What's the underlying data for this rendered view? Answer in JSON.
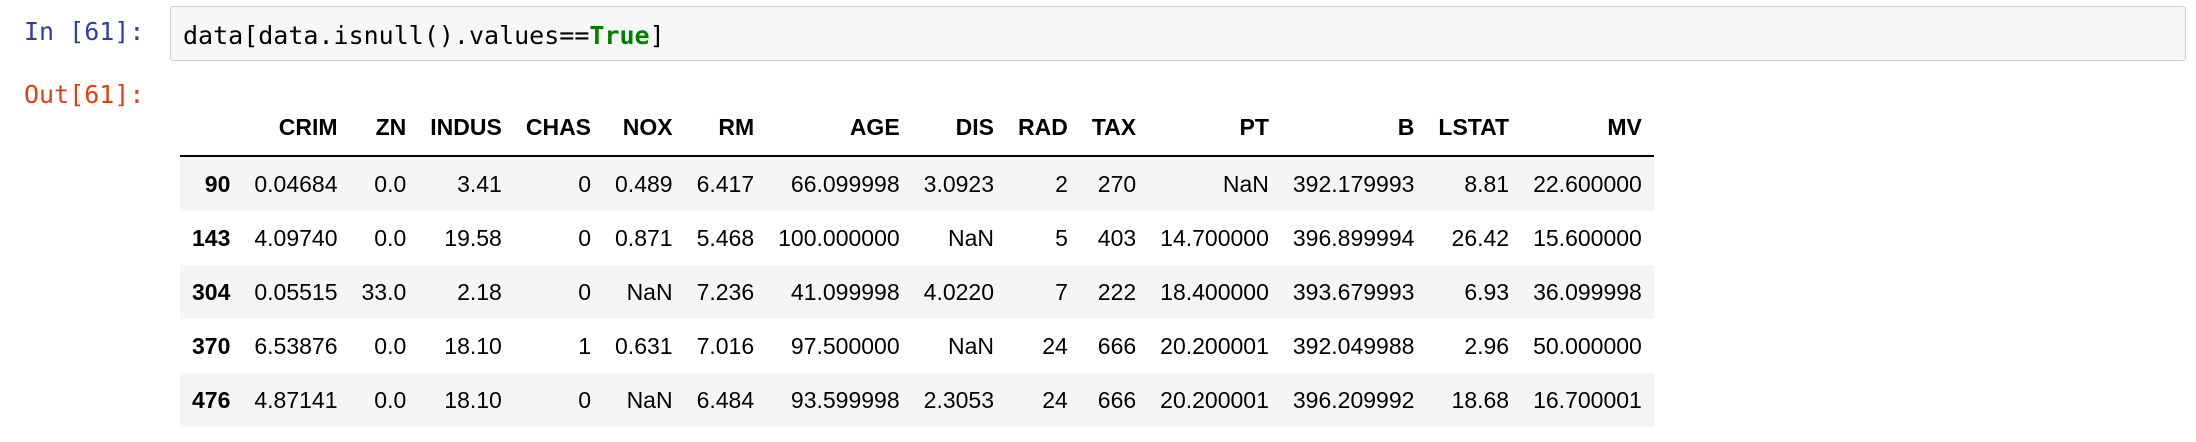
{
  "cell": {
    "in_prompt": "In [61]:",
    "out_prompt": "Out[61]:",
    "code_prefix": "data[data.isnull().values==",
    "code_keyword": "True",
    "code_suffix": "]"
  },
  "table": {
    "columns": [
      "",
      "CRIM",
      "ZN",
      "INDUS",
      "CHAS",
      "NOX",
      "RM",
      "AGE",
      "DIS",
      "RAD",
      "TAX",
      "PT",
      "B",
      "LSTAT",
      "MV"
    ],
    "rows": [
      [
        "90",
        "0.04684",
        "0.0",
        "3.41",
        "0",
        "0.489",
        "6.417",
        "66.099998",
        "3.0923",
        "2",
        "270",
        "NaN",
        "392.179993",
        "8.81",
        "22.600000"
      ],
      [
        "143",
        "4.09740",
        "0.0",
        "19.58",
        "0",
        "0.871",
        "5.468",
        "100.000000",
        "NaN",
        "5",
        "403",
        "14.700000",
        "396.899994",
        "26.42",
        "15.600000"
      ],
      [
        "304",
        "0.05515",
        "33.0",
        "2.18",
        "0",
        "NaN",
        "7.236",
        "41.099998",
        "4.0220",
        "7",
        "222",
        "18.400000",
        "393.679993",
        "6.93",
        "36.099998"
      ],
      [
        "370",
        "6.53876",
        "0.0",
        "18.10",
        "1",
        "0.631",
        "7.016",
        "97.500000",
        "NaN",
        "24",
        "666",
        "20.200001",
        "392.049988",
        "2.96",
        "50.000000"
      ],
      [
        "476",
        "4.87141",
        "0.0",
        "18.10",
        "0",
        "NaN",
        "6.484",
        "93.599998",
        "2.3053",
        "24",
        "666",
        "20.200001",
        "396.209992",
        "18.68",
        "16.700001"
      ]
    ]
  },
  "colors": {
    "in_prompt": "#303f9f",
    "out_prompt": "#d84315",
    "keyword": "#008000",
    "input_bg": "#f7f7f7",
    "row_stripe": "#f5f5f5"
  }
}
